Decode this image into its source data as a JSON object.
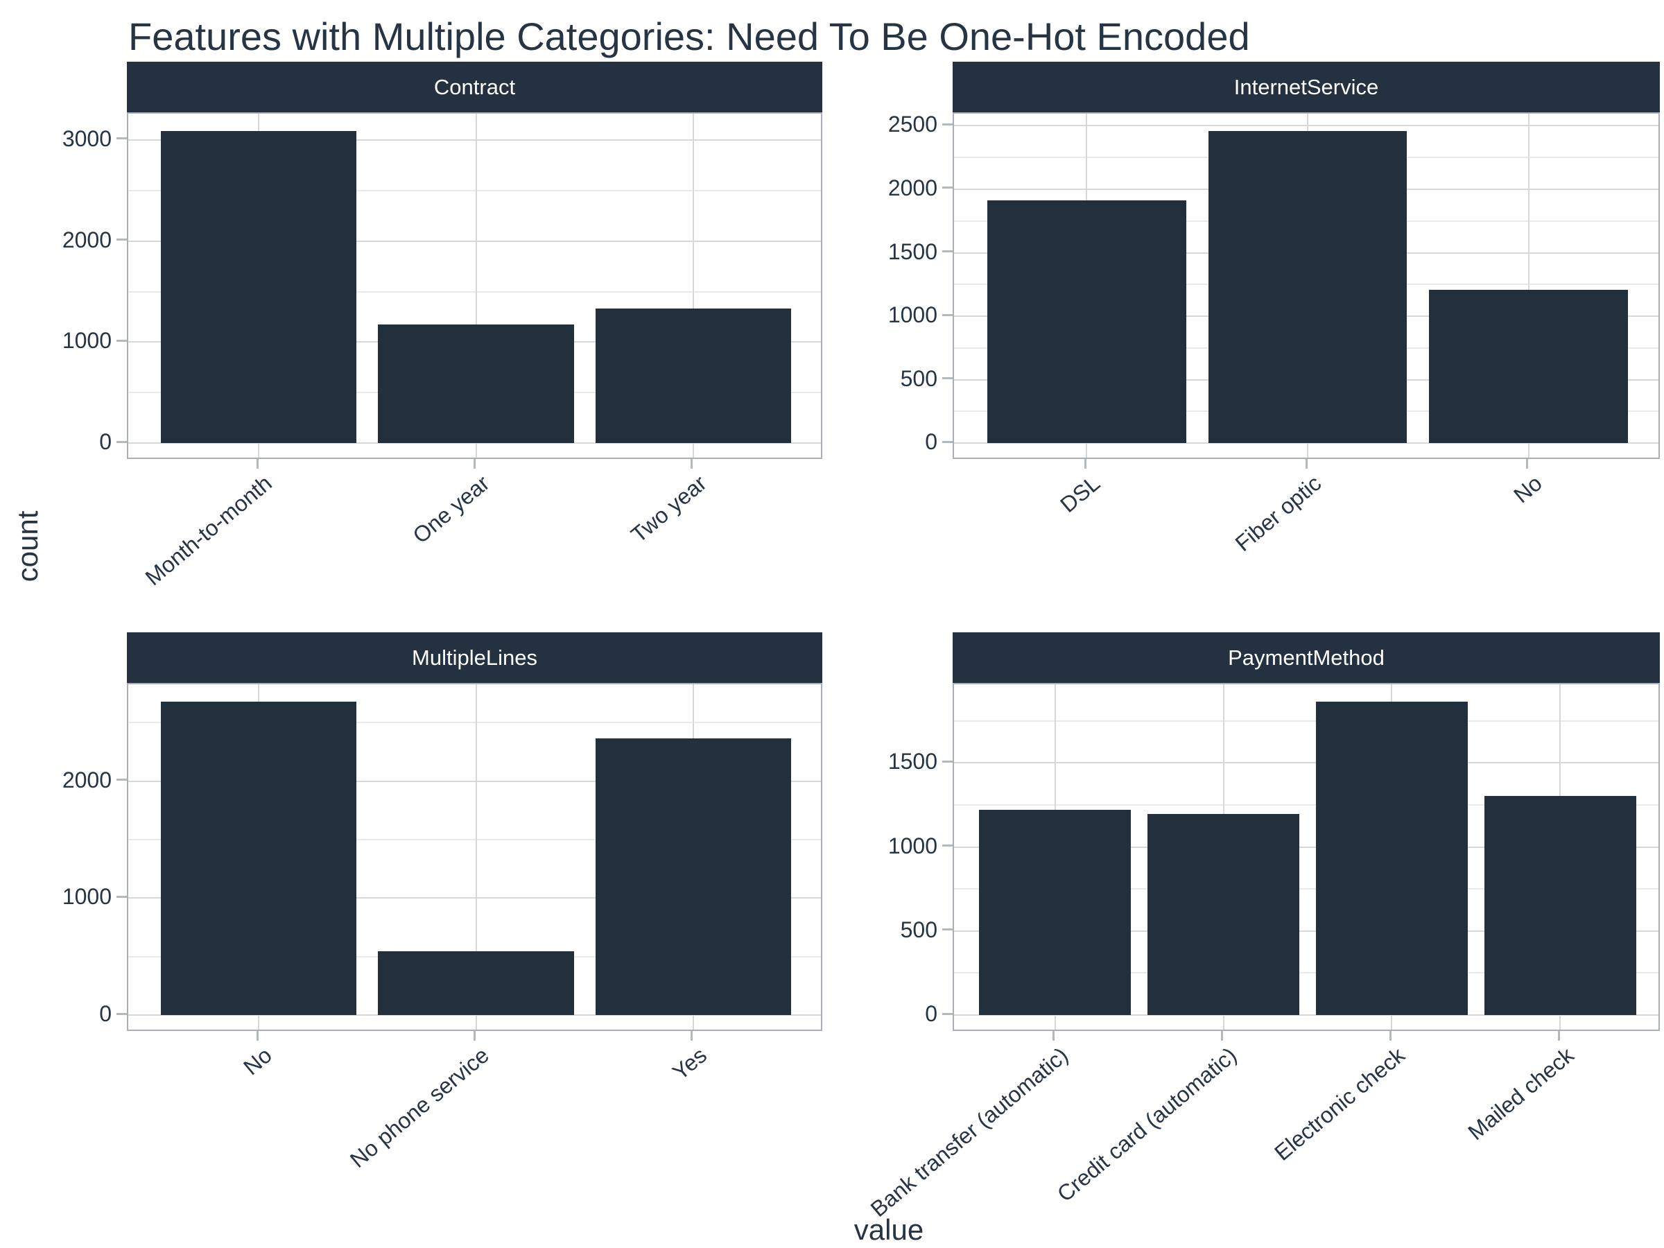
{
  "title": "Features with Multiple Categories: Need To Be One-Hot Encoded",
  "axes": {
    "x_title": "value",
    "y_title": "count"
  },
  "colors": {
    "bar": "#22303E",
    "strip_bg": "#243140",
    "strip_text": "#FFFFFF",
    "text": "#263444",
    "grid_major": "#D8D8D8",
    "grid_minor": "#EAEAEA",
    "panel_border": "#A9AFB4",
    "tick_mark": "#B3B9BD",
    "panel_bg": "#FFFFFF"
  },
  "chart_data": [
    {
      "type": "bar",
      "facet": "Contract",
      "categories": [
        "Month-to-month",
        "One year",
        "Two year"
      ],
      "values": [
        3090,
        1175,
        1335
      ],
      "yticks": [
        0,
        1000,
        2000,
        3000
      ],
      "yticks_minor": [
        500,
        1500,
        2500
      ],
      "ylim": [
        -170,
        3260
      ]
    },
    {
      "type": "bar",
      "facet": "InternetService",
      "categories": [
        "DSL",
        "Fiber optic",
        "No"
      ],
      "values": [
        1910,
        2460,
        1210
      ],
      "yticks": [
        0,
        500,
        1000,
        1500,
        2000,
        2500
      ],
      "yticks_minor": [
        250,
        750,
        1250,
        1750,
        2250
      ],
      "ylim": [
        -135,
        2595
      ]
    },
    {
      "type": "bar",
      "facet": "MultipleLines",
      "categories": [
        "No",
        "No phone service",
        "Yes"
      ],
      "values": [
        2680,
        545,
        2365
      ],
      "yticks": [
        0,
        1000,
        2000
      ],
      "yticks_minor": [
        500,
        1500,
        2500
      ],
      "ylim": [
        -147,
        2827
      ]
    },
    {
      "type": "bar",
      "facet": "PaymentMethod",
      "categories": [
        "Bank transfer (automatic)",
        "Credit card (automatic)",
        "Electronic check",
        "Mailed check"
      ],
      "values": [
        1220,
        1195,
        1865,
        1305
      ],
      "yticks": [
        0,
        500,
        1000,
        1500
      ],
      "yticks_minor": [
        250,
        750,
        1250,
        1750
      ],
      "ylim": [
        -103,
        1968
      ]
    }
  ]
}
